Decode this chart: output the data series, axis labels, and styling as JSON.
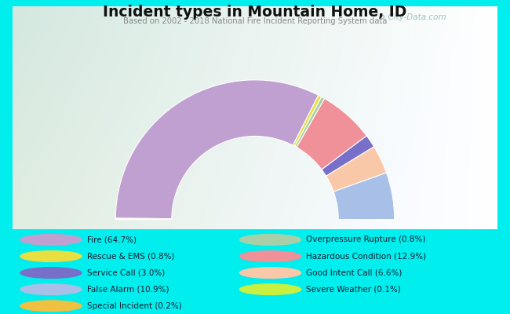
{
  "title": "Incident types in Mountain Home, ID",
  "subtitle": "Based on 2002 - 2018 National Fire Incident Reporting System data",
  "background_color": "#00EEEE",
  "watermark": "⚙ City-Data.com",
  "segment_order": [
    {
      "label": "False Alarm",
      "pct": 10.9,
      "color": "#a8c0e8"
    },
    {
      "label": "Good Intent Call",
      "pct": 6.6,
      "color": "#f8c8a8"
    },
    {
      "label": "Service Call",
      "pct": 3.0,
      "color": "#7870c8"
    },
    {
      "label": "Hazardous Condition",
      "pct": 12.9,
      "color": "#f09098"
    },
    {
      "label": "Overpressure Rupture",
      "pct": 0.8,
      "color": "#a8d0a8"
    },
    {
      "label": "Rescue & EMS",
      "pct": 0.8,
      "color": "#e8e040"
    },
    {
      "label": "Fire",
      "pct": 64.7,
      "color": "#c0a0d0"
    },
    {
      "label": "Severe Weather",
      "pct": 0.1,
      "color": "#c8f040"
    },
    {
      "label": "Special Incident",
      "pct": 0.2,
      "color": "#f0c040"
    }
  ],
  "legend_left": [
    {
      "label": "Fire (64.7%)",
      "color": "#c0a0d0"
    },
    {
      "label": "Rescue & EMS (0.8%)",
      "color": "#e8e040"
    },
    {
      "label": "Service Call (3.0%)",
      "color": "#7870c8"
    },
    {
      "label": "False Alarm (10.9%)",
      "color": "#a8c0e8"
    },
    {
      "label": "Special Incident (0.2%)",
      "color": "#f0c040"
    }
  ],
  "legend_right": [
    {
      "label": "Overpressure Rupture (0.8%)",
      "color": "#a8d0a8"
    },
    {
      "label": "Hazardous Condition (12.9%)",
      "color": "#f09098"
    },
    {
      "label": "Good Intent Call (6.6%)",
      "color": "#f8c8a8"
    },
    {
      "label": "Severe Weather (0.1%)",
      "color": "#c8f040"
    }
  ]
}
